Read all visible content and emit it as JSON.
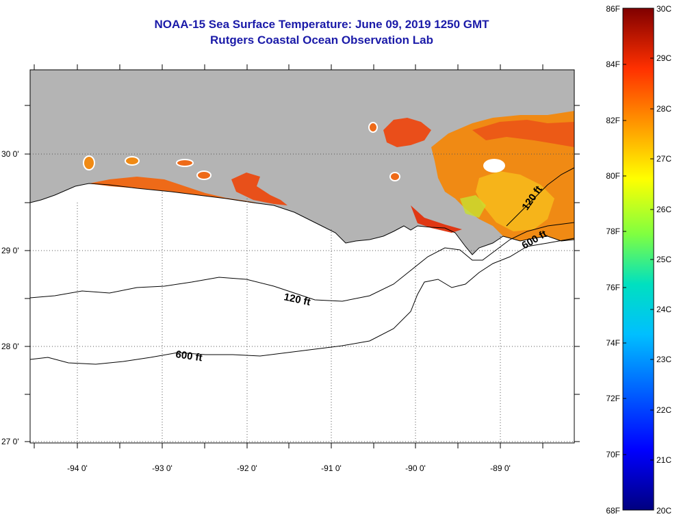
{
  "title": "NOAA-15 Sea Surface Temperature:  June 09, 2019 1250 GMT",
  "subtitle": "Rutgers Coastal Ocean Observation Lab",
  "lat_labels": [
    "30 0'",
    "29 0'",
    "28 0'",
    "27 0'"
  ],
  "lon_labels": [
    "-94 0'",
    "-93 0'",
    "-92 0'",
    "-91 0'",
    "-90 0'",
    "-89 0'"
  ],
  "contour_labels": {
    "c120_offshore": "120 ft",
    "c600_offshore": "600 ft",
    "c120_east": "120 ft",
    "c600_east": "600 ft"
  },
  "colorbar": {
    "f_labels": [
      "86F",
      "84F",
      "82F",
      "80F",
      "78F",
      "76F",
      "74F",
      "72F",
      "70F",
      "68F"
    ],
    "c_labels": [
      "30C",
      "29C",
      "28C",
      "27C",
      "26C",
      "25C",
      "24C",
      "23C",
      "22C",
      "21C",
      "20C"
    ]
  },
  "colors": {
    "land": "#b4b4b4",
    "title": "#1a1aa8",
    "sst_warm": "#f07010",
    "sst_hot": "#e03010"
  }
}
